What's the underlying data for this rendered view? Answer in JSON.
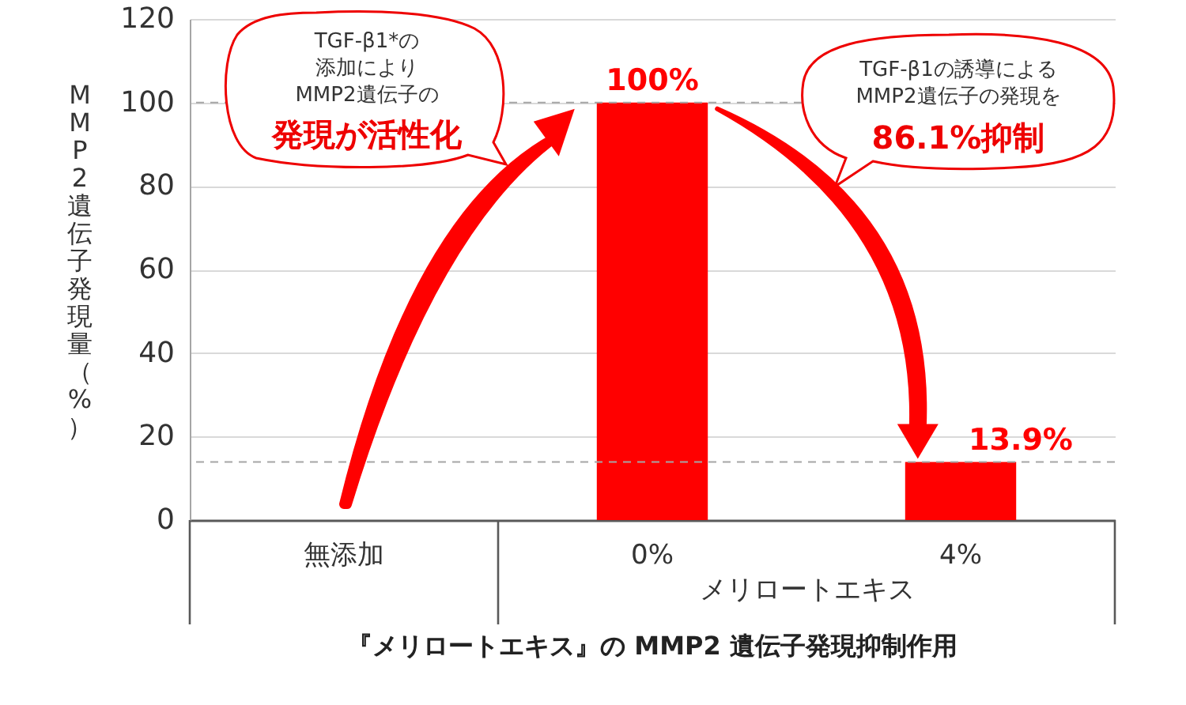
{
  "chart_data": {
    "type": "bar",
    "title": "『メリロートエキス』の MMP2 遺伝子発現抑制作用",
    "ylabel": "MMP2遺伝子発現量（%）",
    "xlabel": "メリロートエキス",
    "categories": [
      "無添加",
      "0%",
      "4%"
    ],
    "values": [
      null,
      100,
      13.9
    ],
    "color": "#ff0000",
    "value_labels": [
      null,
      "100%",
      "13.9%"
    ],
    "ylim": [
      0,
      120
    ],
    "yticks": [
      0,
      20,
      40,
      60,
      80,
      100,
      120
    ],
    "grid": "y",
    "ref_lines": [
      {
        "axis": "y",
        "value": 100,
        "color": "#a6a6a6",
        "line_style": "dashed"
      },
      {
        "axis": "y",
        "value": 13.9,
        "color": "#a6a6a6",
        "line_style": "dashed"
      }
    ],
    "annotations": [
      "TGF-β1*の",
      "添加により",
      "MMP2遺伝子の",
      "発現が活性化",
      "TGF-β1の誘導による",
      "MMP2遺伝子の発現を",
      "86.1%抑制"
    ]
  }
}
